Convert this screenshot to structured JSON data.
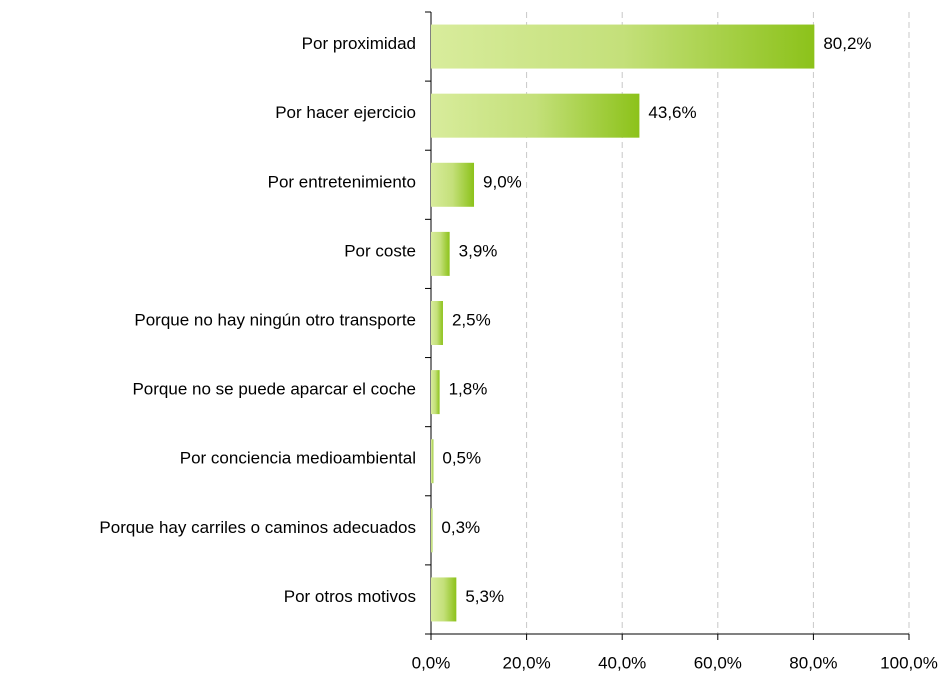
{
  "chart_data": {
    "type": "bar",
    "orientation": "horizontal",
    "categories": [
      "Por proximidad",
      "Por hacer ejercicio",
      "Por entretenimiento",
      "Por coste",
      "Porque no hay ningún otro transporte",
      "Porque no se puede aparcar el coche",
      "Por conciencia medioambiental",
      "Porque hay carriles o caminos adecuados",
      "Por otros motivos"
    ],
    "values": [
      80.2,
      43.6,
      9.0,
      3.9,
      2.5,
      1.8,
      0.5,
      0.3,
      5.3
    ],
    "value_labels": [
      "80,2%",
      "43,6%",
      "9,0%",
      "3,9%",
      "2,5%",
      "1,8%",
      "0,5%",
      "0,3%",
      "5,3%"
    ],
    "color": "#8cc21a",
    "xlim": [
      0,
      100
    ],
    "xticks": [
      {
        "value": 0,
        "label": "0,0%"
      },
      {
        "value": 20,
        "label": "20,0%"
      },
      {
        "value": 40,
        "label": "40,0%"
      },
      {
        "value": 60,
        "label": "60,0%"
      },
      {
        "value": 80,
        "label": "80,0%"
      },
      {
        "value": 100,
        "label": "100,0%"
      }
    ],
    "grid": true
  }
}
